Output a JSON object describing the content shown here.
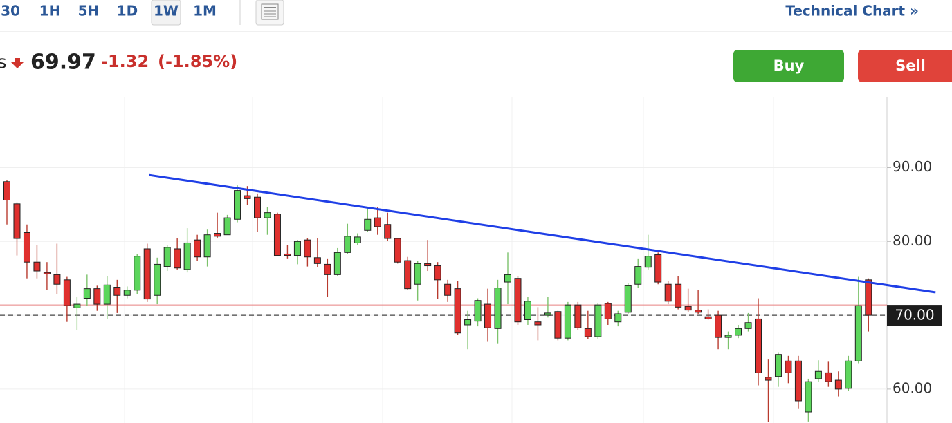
{
  "toolbar": {
    "intervals": [
      "30",
      "1H",
      "5H",
      "1D",
      "1W",
      "1M"
    ],
    "active": 4,
    "link": "Technical Chart »"
  },
  "quote": {
    "name": "s",
    "price": "69.97",
    "change": "-1.32",
    "change_percent": "(-1.85%)"
  },
  "actions": {
    "buy": "Buy",
    "sell": "Sell"
  },
  "chart_data": {
    "type": "candlestick",
    "open": [
      88.1,
      85.1,
      81.2,
      77.2,
      75.8,
      75.5,
      74.8,
      71.0,
      72.3,
      73.6,
      71.5,
      73.8,
      72.7,
      73.4,
      79.0,
      72.7,
      76.6,
      79.0,
      76.2,
      80.2,
      77.9,
      81.1,
      80.9,
      83.0,
      86.2,
      86.0,
      83.2,
      83.7,
      78.3,
      78.1,
      80.2,
      77.8,
      76.9,
      75.5,
      78.5,
      79.8,
      81.5,
      83.2,
      82.3,
      80.4,
      77.4,
      74.2,
      77.0,
      76.7,
      74.2,
      73.6,
      68.7,
      69.2,
      71.5,
      68.2,
      74.5,
      75.0,
      69.4,
      69.1,
      70.0,
      70.5,
      66.9,
      71.4,
      68.2,
      67.1,
      71.6,
      69.1,
      70.4,
      74.2,
      76.5,
      78.2,
      74.2,
      74.2,
      71.2,
      70.7,
      69.8,
      70.0,
      67.0,
      67.3,
      68.2,
      69.5,
      61.6,
      61.7,
      63.8,
      63.8,
      56.9,
      61.4,
      62.2,
      61.2,
      60.1,
      63.8,
      74.8
    ],
    "high": [
      88.3,
      85.3,
      82.3,
      79.5,
      77.2,
      79.7,
      75.2,
      72.5,
      75.5,
      74.0,
      75.3,
      74.8,
      73.9,
      78.3,
      79.7,
      77.8,
      79.5,
      80.4,
      81.8,
      80.9,
      81.6,
      83.9,
      83.6,
      87.6,
      87.5,
      86.5,
      84.7,
      83.9,
      79.5,
      80.2,
      80.4,
      80.4,
      77.7,
      79.1,
      82.4,
      81.1,
      84.5,
      84.7,
      83.9,
      80.4,
      77.9,
      77.4,
      80.2,
      77.2,
      74.8,
      74.6,
      70.6,
      72.3,
      73.6,
      74.8,
      78.5,
      75.3,
      72.5,
      71.1,
      72.5,
      70.6,
      71.8,
      71.8,
      70.6,
      71.6,
      71.8,
      70.6,
      74.4,
      77.7,
      80.9,
      78.5,
      74.6,
      75.3,
      73.6,
      73.4,
      70.8,
      70.6,
      67.8,
      68.7,
      70.3,
      72.3,
      64.0,
      65.0,
      64.5,
      64.5,
      61.4,
      63.9,
      63.7,
      62.4,
      64.5,
      75.2,
      75.0
    ],
    "low": [
      82.3,
      78.1,
      75.0,
      75.0,
      73.4,
      72.9,
      69.1,
      68.0,
      71.3,
      70.6,
      69.5,
      70.3,
      72.3,
      72.9,
      71.8,
      71.5,
      76.0,
      76.2,
      75.8,
      77.4,
      76.6,
      80.4,
      80.9,
      82.6,
      84.9,
      81.3,
      80.9,
      78.0,
      77.7,
      76.9,
      76.6,
      76.5,
      72.5,
      75.3,
      78.3,
      79.5,
      81.3,
      80.9,
      80.1,
      77.0,
      73.4,
      72.0,
      76.0,
      72.2,
      71.8,
      67.3,
      65.4,
      68.5,
      66.4,
      66.2,
      71.5,
      68.7,
      68.7,
      66.6,
      69.7,
      66.6,
      66.6,
      68.0,
      66.8,
      66.8,
      68.7,
      68.5,
      70.1,
      73.7,
      76.2,
      74.2,
      71.5,
      70.8,
      70.4,
      70.1,
      69.4,
      65.4,
      65.4,
      66.9,
      67.8,
      60.5,
      55.5,
      60.3,
      60.8,
      57.3,
      55.6,
      61.0,
      60.3,
      59.0,
      59.8,
      63.5,
      67.8
    ],
    "close": [
      85.6,
      80.4,
      77.2,
      76.0,
      75.6,
      74.2,
      71.3,
      71.5,
      73.6,
      71.5,
      74.1,
      72.7,
      73.4,
      78.0,
      72.2,
      76.9,
      79.2,
      76.4,
      79.8,
      77.9,
      80.9,
      80.7,
      83.2,
      86.9,
      85.8,
      83.2,
      83.9,
      78.1,
      78.1,
      80.0,
      77.9,
      77.0,
      75.5,
      78.5,
      80.7,
      80.6,
      83.0,
      82.0,
      80.4,
      77.2,
      73.6,
      77.0,
      76.7,
      74.8,
      72.7,
      67.6,
      69.4,
      72.0,
      68.3,
      73.7,
      75.5,
      69.1,
      71.9,
      68.7,
      70.3,
      66.9,
      71.4,
      68.3,
      67.1,
      71.4,
      69.5,
      70.2,
      74.0,
      76.6,
      78.0,
      74.5,
      71.9,
      71.1,
      70.7,
      70.4,
      69.5,
      67.0,
      67.3,
      68.2,
      69.0,
      62.2,
      61.2,
      64.7,
      62.2,
      58.4,
      61.0,
      62.4,
      61.0,
      60.0,
      63.8,
      71.3,
      70.0
    ],
    "ylim": [
      55.4,
      99.6
    ],
    "yticks": [
      {
        "value": 60,
        "label": "60.00"
      },
      {
        "value": 70,
        "label": "70.00"
      },
      {
        "value": 80,
        "label": "80.00"
      },
      {
        "value": 90,
        "label": "90.00"
      }
    ],
    "last_price": {
      "value": 70,
      "label": "70.00"
    },
    "reference_line": 71.4,
    "trendline": {
      "x": [
        14.2,
        92.7
      ],
      "y": [
        89,
        73.1
      ],
      "color": "#1f3fe6"
    },
    "colors": {
      "up": "#5cd65c",
      "down": "#e0302e",
      "up_wick": "#7cc26b",
      "down_wick": "#b83a2e"
    },
    "grid": true
  }
}
